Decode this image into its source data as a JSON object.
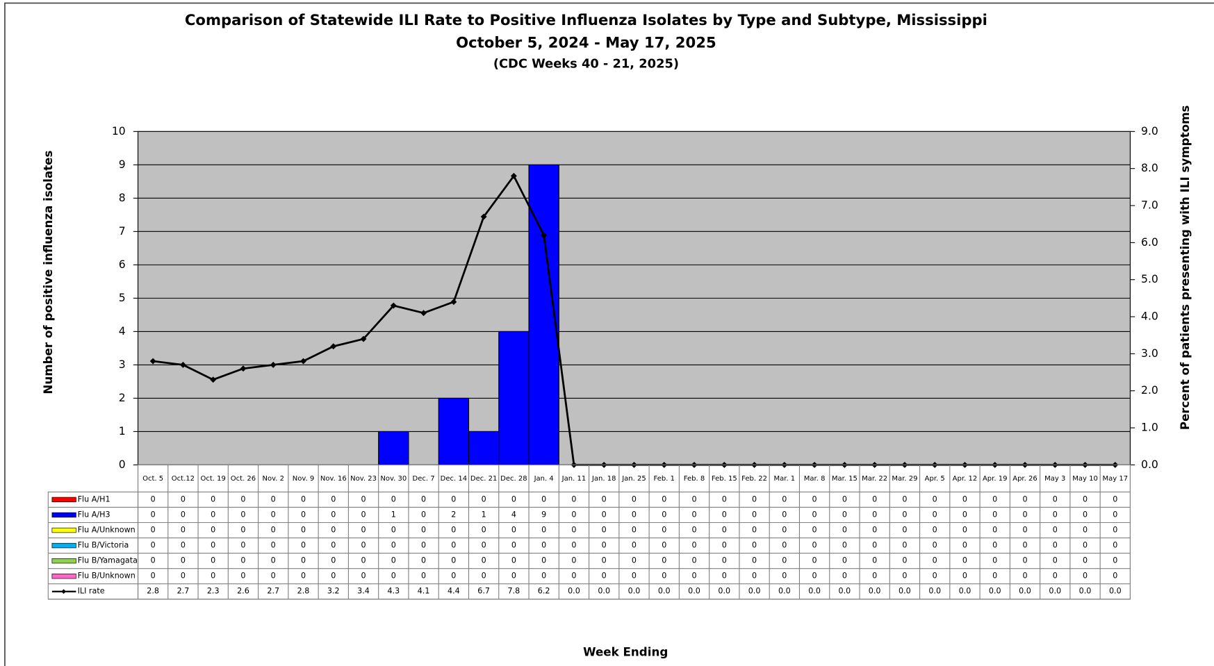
{
  "chart_data": {
    "type": "bar",
    "title": "Comparison of Statewide ILI Rate to Positive Influenza Isolates by Type and Subtype, Mississippi",
    "subtitle": "October 5, 2024 - May 17, 2025",
    "subtitle2": "(CDC Weeks 40 - 21, 2025)",
    "x_label": "Week Ending",
    "y_label": "Number of positive influenza isolates",
    "y2_label": "Percent of patients presenting with ILI symptoms",
    "categories": [
      "Oct. 5",
      "Oct.12",
      "Oct. 19",
      "Oct. 26",
      "Nov. 2",
      "Nov. 9",
      "Nov. 16",
      "Nov. 23",
      "Nov. 30",
      "Dec. 7",
      "Dec. 14",
      "Dec. 21",
      "Dec. 28",
      "Jan. 4",
      "Jan. 11",
      "Jan. 18",
      "Jan. 25",
      "Feb. 1",
      "Feb. 8",
      "Feb. 15",
      "Feb. 22",
      "Mar. 1",
      "Mar. 8",
      "Mar. 15",
      "Mar. 22",
      "Mar. 29",
      "Apr. 5",
      "Apr. 12",
      "Apr. 19",
      "Apr. 26",
      "May 3",
      "May 10",
      "May 17"
    ],
    "ylim": [
      0,
      10
    ],
    "yticks": [
      0,
      1,
      2,
      3,
      4,
      5,
      6,
      7,
      8,
      9,
      10
    ],
    "y2lim": [
      0,
      9
    ],
    "y2ticks": [
      {
        "value": 0,
        "label": "0.0"
      },
      {
        "value": 1,
        "label": "1.0"
      },
      {
        "value": 2,
        "label": "2.0"
      },
      {
        "value": 3,
        "label": "3.0"
      },
      {
        "value": 4,
        "label": "4.0"
      },
      {
        "value": 5,
        "label": "5.0"
      },
      {
        "value": 6,
        "label": "6.0"
      },
      {
        "value": 7,
        "label": "7.0"
      },
      {
        "value": 8,
        "label": "8.0"
      },
      {
        "value": 9,
        "label": "9.0"
      }
    ],
    "grid": true,
    "series": [
      {
        "name": "Flu A/H1",
        "color": "#ff0000",
        "values": [
          0,
          0,
          0,
          0,
          0,
          0,
          0,
          0,
          0,
          0,
          0,
          0,
          0,
          0,
          0,
          0,
          0,
          0,
          0,
          0,
          0,
          0,
          0,
          0,
          0,
          0,
          0,
          0,
          0,
          0,
          0,
          0,
          0
        ]
      },
      {
        "name": "Flu A/H3",
        "color": "#0000ff",
        "values": [
          0,
          0,
          0,
          0,
          0,
          0,
          0,
          0,
          1,
          0,
          2,
          1,
          4,
          9,
          0,
          0,
          0,
          0,
          0,
          0,
          0,
          0,
          0,
          0,
          0,
          0,
          0,
          0,
          0,
          0,
          0,
          0,
          0
        ]
      },
      {
        "name": "Flu A/Unknown",
        "color": "#ffff00",
        "values": [
          0,
          0,
          0,
          0,
          0,
          0,
          0,
          0,
          0,
          0,
          0,
          0,
          0,
          0,
          0,
          0,
          0,
          0,
          0,
          0,
          0,
          0,
          0,
          0,
          0,
          0,
          0,
          0,
          0,
          0,
          0,
          0,
          0
        ]
      },
      {
        "name": "Flu B/Victoria",
        "color": "#00b0f0",
        "values": [
          0,
          0,
          0,
          0,
          0,
          0,
          0,
          0,
          0,
          0,
          0,
          0,
          0,
          0,
          0,
          0,
          0,
          0,
          0,
          0,
          0,
          0,
          0,
          0,
          0,
          0,
          0,
          0,
          0,
          0,
          0,
          0,
          0
        ]
      },
      {
        "name": "Flu B/Yamagata",
        "color": "#92d050",
        "values": [
          0,
          0,
          0,
          0,
          0,
          0,
          0,
          0,
          0,
          0,
          0,
          0,
          0,
          0,
          0,
          0,
          0,
          0,
          0,
          0,
          0,
          0,
          0,
          0,
          0,
          0,
          0,
          0,
          0,
          0,
          0,
          0,
          0
        ]
      },
      {
        "name": "Flu B/Unknown",
        "color": "#ff66cc",
        "values": [
          0,
          0,
          0,
          0,
          0,
          0,
          0,
          0,
          0,
          0,
          0,
          0,
          0,
          0,
          0,
          0,
          0,
          0,
          0,
          0,
          0,
          0,
          0,
          0,
          0,
          0,
          0,
          0,
          0,
          0,
          0,
          0,
          0
        ]
      },
      {
        "name": "ILI rate",
        "color": "#000000",
        "type": "line",
        "axis": "y2",
        "values": [
          2.8,
          2.7,
          2.3,
          2.6,
          2.7,
          2.8,
          3.2,
          3.4,
          4.3,
          4.1,
          4.4,
          6.7,
          7.8,
          6.2,
          0,
          0,
          0,
          0,
          0,
          0,
          0,
          0,
          0,
          0,
          0,
          0,
          0,
          0,
          0,
          0,
          0,
          0,
          0
        ],
        "value_labels": [
          "2.8",
          "2.7",
          "2.3",
          "2.6",
          "2.7",
          "2.8",
          "3.2",
          "3.4",
          "4.3",
          "4.1",
          "4.4",
          "6.7",
          "7.8",
          "6.2",
          "0.0",
          "0.0",
          "0.0",
          "0.0",
          "0.0",
          "0.0",
          "0.0",
          "0.0",
          "0.0",
          "0.0",
          "0.0",
          "0.0",
          "0.0",
          "0.0",
          "0.0",
          "0.0",
          "0.0",
          "0.0",
          "0.0"
        ]
      }
    ]
  }
}
